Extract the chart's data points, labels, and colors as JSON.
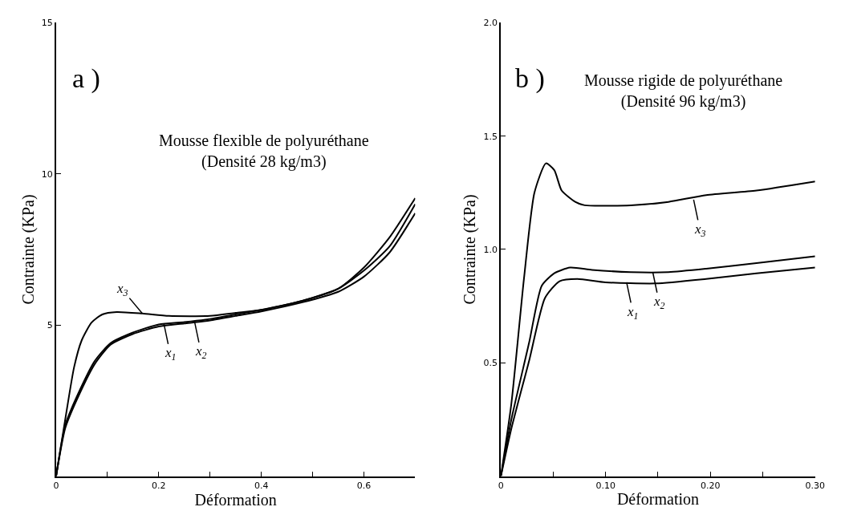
{
  "chart_data": [
    {
      "type": "line",
      "title": "Mousse flexible de polyuréthane\n(Densité 28 kg/m3)",
      "xlabel": "Déformation",
      "ylabel": "Contrainte (KPa)",
      "xlim": [
        0,
        0.7
      ],
      "xticks": [
        0,
        {
          "value": 0.1,
          "label": null
        },
        {
          "value": 0.2,
          "label": "0.2"
        },
        {
          "value": 0.3,
          "label": null
        },
        {
          "value": 0.4,
          "label": "0.4"
        },
        {
          "value": 0.5,
          "label": null
        },
        {
          "value": 0.6,
          "label": "0.6"
        }
      ],
      "ylim": [
        0,
        15
      ],
      "yticks": [
        5,
        10,
        15
      ],
      "marker": "none",
      "line_style": "solid",
      "series": [
        {
          "color": "#000000",
          "x": [
            0,
            0.018,
            0.035,
            0.05,
            0.069,
            0.09,
            0.118,
            0.168,
            0.22,
            0.3,
            0.35,
            0.4,
            0.48,
            0.55,
            0.6,
            0.65,
            0.7
          ],
          "values": [
            0,
            1.9,
            3.6,
            4.5,
            5.08,
            5.35,
            5.43,
            5.38,
            5.3,
            5.3,
            5.4,
            5.5,
            5.8,
            6.2,
            6.9,
            7.9,
            9.2
          ]
        },
        {
          "color": "#000000",
          "x": [
            0,
            0.018,
            0.045,
            0.075,
            0.106,
            0.149,
            0.2,
            0.25,
            0.3,
            0.35,
            0.4,
            0.48,
            0.55,
            0.6,
            0.65,
            0.7
          ],
          "values": [
            0,
            1.7,
            2.8,
            3.8,
            4.4,
            4.75,
            5.02,
            5.1,
            5.2,
            5.35,
            5.5,
            5.8,
            6.2,
            6.8,
            7.6,
            9.0
          ]
        },
        {
          "color": "#000000",
          "x": [
            0,
            0.018,
            0.045,
            0.075,
            0.106,
            0.149,
            0.2,
            0.25,
            0.3,
            0.35,
            0.4,
            0.48,
            0.55,
            0.6,
            0.65,
            0.7
          ],
          "values": [
            0,
            1.6,
            2.7,
            3.7,
            4.35,
            4.7,
            4.95,
            5.05,
            5.15,
            5.3,
            5.45,
            5.75,
            6.1,
            6.6,
            7.4,
            8.7
          ]
        }
      ],
      "annotations": [
        "a )",
        {
          "text": "x$_{3}$",
          "x": 0.168,
          "y": 5.38
        },
        {
          "text": "x$_{1}$",
          "x": 0.21,
          "y": 5.05
        },
        {
          "text": "x$_{2}$",
          "x": 0.27,
          "y": 5.1
        }
      ]
    },
    {
      "type": "line",
      "title": "Mousse rigide de polyuréthane\n(Densité 96 kg/m3)",
      "xlabel": "Déformation",
      "ylabel": "Contrainte (KPa)",
      "xlim": [
        0,
        0.3
      ],
      "xticks": [
        0,
        {
          "value": 0.05,
          "label": null
        },
        {
          "value": 0.1,
          "label": "0.10"
        },
        {
          "value": 0.15,
          "label": null
        },
        {
          "value": 0.2,
          "label": "0.20"
        },
        {
          "value": 0.25,
          "label": null
        },
        {
          "value": 0.3,
          "label": "0.30"
        }
      ],
      "ylim": [
        0,
        2
      ],
      "yticks": [
        0.5,
        {
          "value": 1,
          "label": "1.0"
        },
        1.5,
        {
          "value": 2,
          "label": "2.0"
        }
      ],
      "marker": "none",
      "line_style": "solid",
      "series": [
        {
          "color": "#000000",
          "x": [
            0,
            0.01,
            0.022,
            0.032,
            0.043,
            0.051,
            0.058,
            0.071,
            0.08,
            0.124,
            0.16,
            0.196,
            0.244,
            0.3
          ],
          "values": [
            0,
            0.32,
            0.87,
            1.25,
            1.38,
            1.35,
            1.26,
            1.21,
            1.195,
            1.195,
            1.21,
            1.24,
            1.26,
            1.3
          ]
        },
        {
          "color": "#000000",
          "x": [
            0,
            0.01,
            0.027,
            0.042,
            0.056,
            0.073,
            0.1,
            0.148,
            0.196,
            0.244,
            0.3
          ],
          "values": [
            0,
            0.21,
            0.51,
            0.785,
            0.86,
            0.87,
            0.855,
            0.85,
            0.87,
            0.895,
            0.92
          ]
        },
        {
          "color": "#000000",
          "x": [
            0,
            0.01,
            0.027,
            0.039,
            0.051,
            0.066,
            0.087,
            0.124,
            0.16,
            0.196,
            0.244,
            0.3
          ],
          "values": [
            0,
            0.25,
            0.59,
            0.84,
            0.895,
            0.92,
            0.91,
            0.9,
            0.9,
            0.915,
            0.94,
            0.97
          ]
        }
      ],
      "annotations": [
        "b )",
        {
          "text": "x$_{3}$",
          "x": 0.184,
          "y": 1.22
        },
        {
          "text": "x$_{1}$",
          "x": 0.12,
          "y": 0.855
        },
        {
          "text": "x$_{2}$",
          "x": 0.145,
          "y": 0.9
        }
      ]
    }
  ]
}
